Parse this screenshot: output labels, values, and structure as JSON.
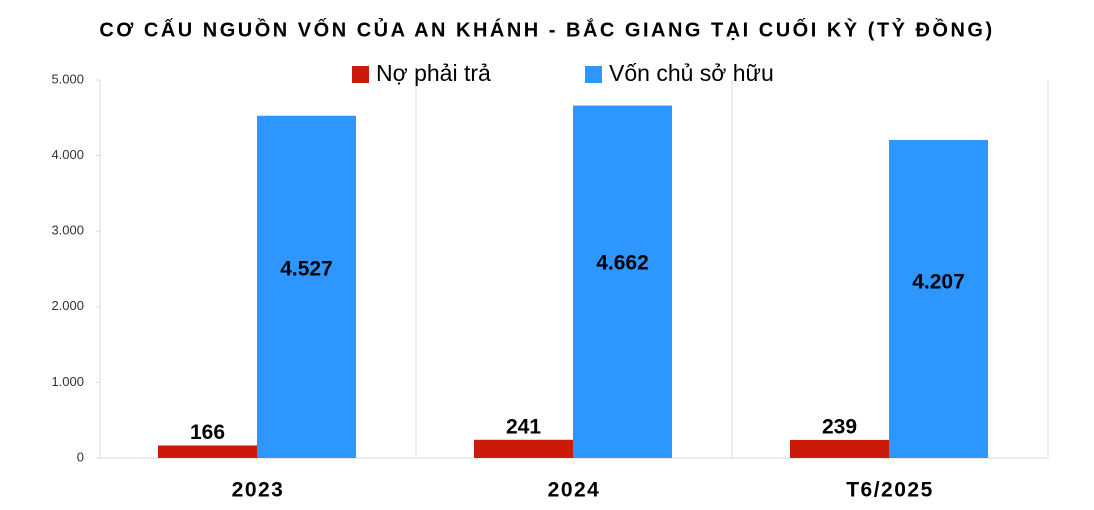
{
  "chart_data": {
    "type": "bar",
    "title": "CƠ CẤU NGUỒN VỐN CỦA AN KHÁNH - BẮC GIANG TẠI CUỐI KỲ (TỶ ĐỒNG)",
    "categories": [
      "2023",
      "2024",
      "T6/2025"
    ],
    "series": [
      {
        "name": "Nợ phải trả",
        "color": "#cc1a0a",
        "values": [
          166,
          241,
          239
        ],
        "value_labels": [
          "166",
          "241",
          "239"
        ]
      },
      {
        "name": "Vốn chủ sở hữu",
        "color": "#2e96ff",
        "values": [
          4527,
          4662,
          4207
        ],
        "value_labels": [
          "4.527",
          "4.662",
          "4.207"
        ]
      }
    ],
    "ylim": [
      0,
      5000
    ],
    "yticks": [
      0,
      {
        "value": 1000,
        "label": "1.000"
      },
      {
        "value": 2000,
        "label": "2.000"
      },
      {
        "value": 3000,
        "label": "3.000"
      },
      {
        "value": 4000,
        "label": "4.000"
      },
      {
        "value": 5000,
        "label": "5.000"
      }
    ],
    "legend": "top"
  }
}
